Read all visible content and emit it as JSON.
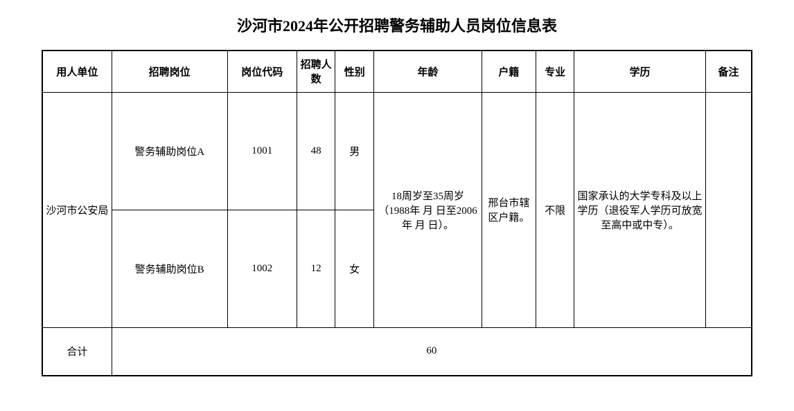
{
  "title": "沙河市2024年公开招聘警务辅助人员岗位信息表",
  "table": {
    "headers": {
      "employer": "用人单位",
      "position": "招聘岗位",
      "code": "岗位代码",
      "count": "招聘人数",
      "gender": "性别",
      "age": "年龄",
      "huji": "户籍",
      "major": "专业",
      "education": "学历",
      "note": "备注"
    },
    "employer": "沙河市公安局",
    "rows": [
      {
        "position": "警务辅助岗位A",
        "code": "1001",
        "count": "48",
        "gender": "男"
      },
      {
        "position": "警务辅助岗位B",
        "code": "1002",
        "count": "12",
        "gender": "女"
      }
    ],
    "shared": {
      "age": "18周岁至35周岁（1988年 月 日至2006年 月 日）。",
      "huji": "邢台市辖区户籍。",
      "major": "不限",
      "education": "国家承认的大学专科及以上学历（退役军人学历可放宽至高中或中专）。",
      "note": ""
    },
    "total": {
      "label": "合计",
      "value": "60"
    }
  },
  "style": {
    "background_color": "#ffffff",
    "border_color": "#000000",
    "text_color": "#000000",
    "title_fontsize": 22,
    "cell_fontsize": 15,
    "font_family": "SimSun"
  }
}
